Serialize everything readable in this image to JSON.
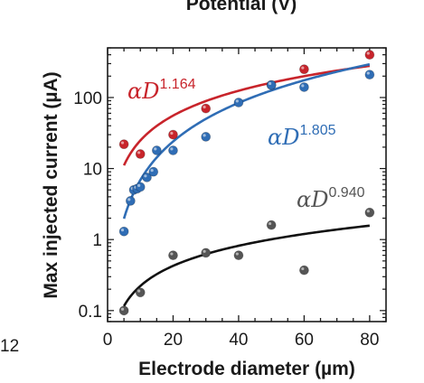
{
  "chart_data": {
    "type": "scatter",
    "title": "",
    "partial_top_text": "Potential (V)",
    "partial_left_tick": "12",
    "xlabel": "Electrode diameter (µm)",
    "ylabel": "Max injected current (µA)",
    "xlim": [
      0,
      85
    ],
    "ylim": [
      0.07,
      500
    ],
    "yscale": "log",
    "xticks": [
      0,
      20,
      40,
      60,
      80
    ],
    "xtick_labels": [
      "0",
      "20",
      "40",
      "60",
      "80"
    ],
    "yticks": [
      0.1,
      1,
      10,
      100
    ],
    "ytick_labels": [
      "0.1",
      "1",
      "10",
      "100"
    ],
    "grid": false,
    "legend": "none",
    "series": [
      {
        "color": "#c8242b",
        "points": [
          [
            5,
            22
          ],
          [
            10,
            16
          ],
          [
            20,
            30
          ],
          [
            30,
            70
          ],
          [
            50,
            150
          ],
          [
            60,
            250
          ],
          [
            80,
            400
          ]
        ],
        "fit": {
          "exponent": 1.164,
          "coef": 1.7,
          "from": 5,
          "to": 80
        },
        "annotation": {
          "base": "αD",
          "exponent": "1.164"
        }
      },
      {
        "color": "#2f6db5",
        "points": [
          [
            5,
            1.3
          ],
          [
            7,
            3.5
          ],
          [
            8,
            5
          ],
          [
            9,
            5.2
          ],
          [
            10,
            5.5
          ],
          [
            12,
            7.5
          ],
          [
            14,
            9
          ],
          [
            15,
            18
          ],
          [
            20,
            18
          ],
          [
            30,
            28
          ],
          [
            40,
            85
          ],
          [
            50,
            150
          ],
          [
            60,
            140
          ],
          [
            80,
            210
          ]
        ],
        "fit": {
          "exponent": 1.805,
          "coef": 0.1078,
          "from": 5,
          "to": 80
        },
        "annotation": {
          "base": "αD",
          "exponent": "1.805"
        }
      },
      {
        "color": "#555555",
        "points": [
          [
            5,
            0.1
          ],
          [
            10,
            0.18
          ],
          [
            20,
            0.6
          ],
          [
            30,
            0.65
          ],
          [
            40,
            0.6
          ],
          [
            50,
            1.6
          ],
          [
            60,
            0.37
          ],
          [
            80,
            2.4
          ]
        ],
        "fit": {
          "exponent": 0.94,
          "coef": 0.0255,
          "from": 5,
          "to": 80
        },
        "annotation": {
          "base": "αD",
          "exponent": "0.940"
        }
      }
    ]
  }
}
